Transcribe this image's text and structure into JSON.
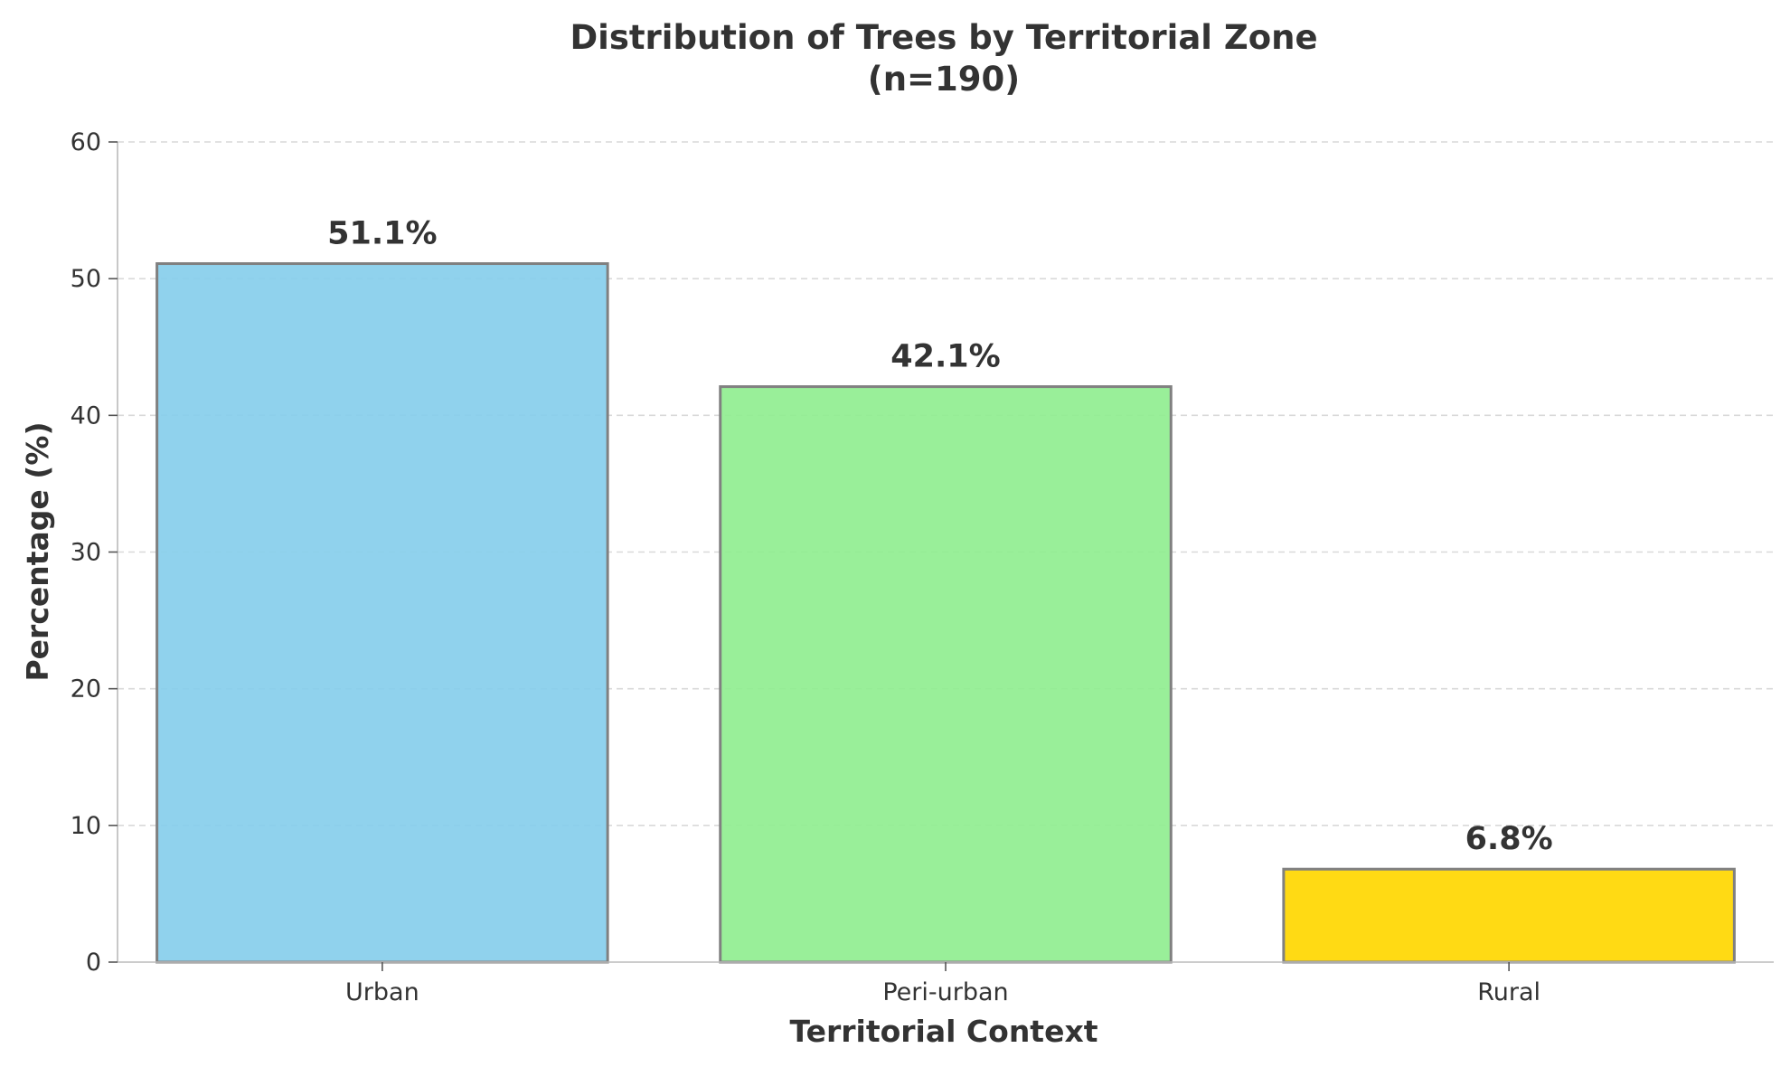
{
  "chart_data": {
    "type": "bar",
    "title": "Distribution of Trees by Territorial Zone",
    "subtitle": "(n=190)",
    "xlabel": "Territorial Context",
    "ylabel": "Percentage (%)",
    "categories": [
      "Urban",
      "Peri-urban",
      "Rural"
    ],
    "values": [
      51.1,
      42.1,
      6.8
    ],
    "data_labels": [
      "51.1%",
      "42.1%",
      "6.8%"
    ],
    "colors": [
      "#87CEEB",
      "#90EE90",
      "#FFD700"
    ],
    "bar_edge_color": "#808080",
    "ylim": [
      0,
      60
    ],
    "yticks": [
      0,
      10,
      20,
      30,
      40,
      50,
      60
    ],
    "grid": "y-dashed"
  }
}
